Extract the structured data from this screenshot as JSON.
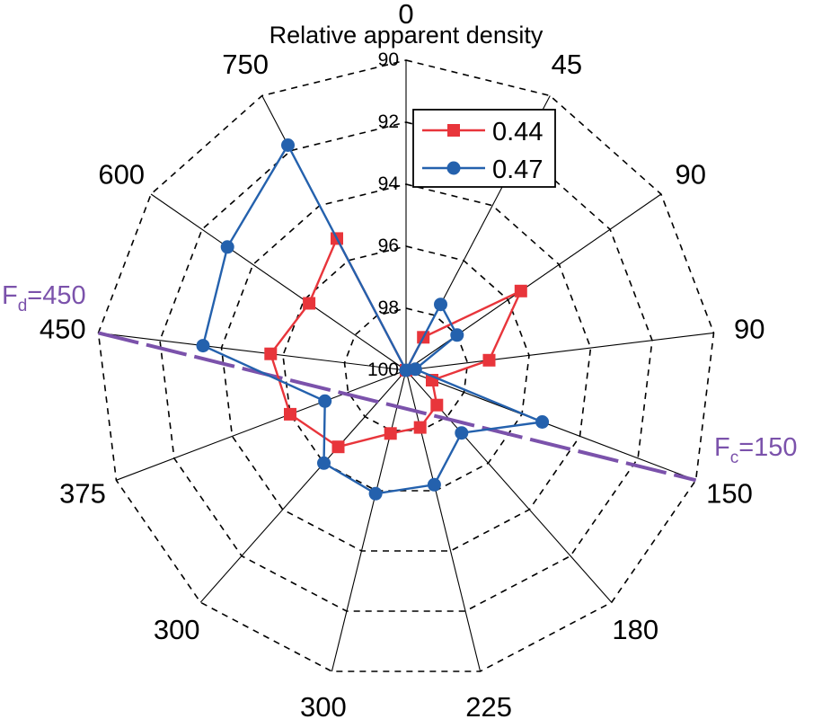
{
  "chart_data": {
    "type": "radar",
    "title": "Relative apparent density",
    "categories": [
      "0",
      "45",
      "90",
      "90",
      "150",
      "180",
      "225",
      "300",
      "300",
      "375",
      "450",
      "600",
      "750"
    ],
    "r_ticks": [
      "90",
      "92",
      "94",
      "96",
      "98",
      "100"
    ],
    "r_range": [
      90,
      100
    ],
    "grid": true,
    "legend_position": "top-center",
    "series": [
      {
        "name": "0.44",
        "color": "#e8353b",
        "marker": "square",
        "values": [
          100,
          98.8,
          95.5,
          97.3,
          99.1,
          98.5,
          98.1,
          97.9,
          96.7,
          96.0,
          95.6,
          96.2,
          95.2
        ]
      },
      {
        "name": "0.47",
        "color": "#2461ad",
        "marker": "circle",
        "values": [
          100,
          97.6,
          98.0,
          99.7,
          95.3,
          97.3,
          96.2,
          95.9,
          96.0,
          97.2,
          93.4,
          93.0,
          91.8
        ]
      }
    ],
    "annotations": [
      {
        "main": "F",
        "sub": "d",
        "rest": "=450",
        "color": "#7b52ab",
        "axis": "450"
      },
      {
        "main": "F",
        "sub": "c",
        "rest": "=150",
        "color": "#7b52ab",
        "axis": "150"
      }
    ]
  }
}
